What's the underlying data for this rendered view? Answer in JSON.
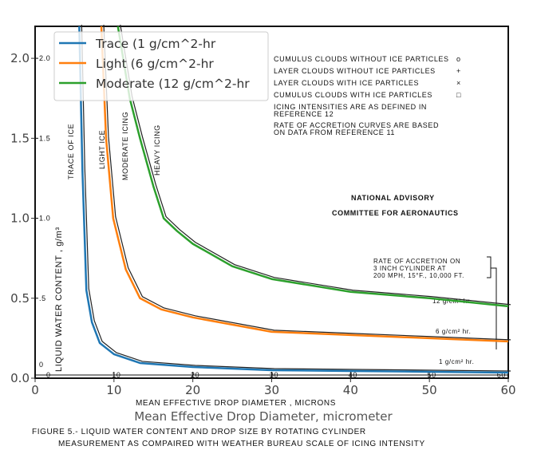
{
  "chart_data": {
    "type": "line",
    "title": "",
    "xlabel": "Mean Effective Drop Diameter, micrometer",
    "ylabel": "",
    "xlim": [
      0,
      60
    ],
    "ylim": [
      0,
      2.2
    ],
    "xticks": [
      "0",
      "10",
      "20",
      "30",
      "40",
      "50",
      "60"
    ],
    "yticks": [
      "0.0",
      "0.5",
      "1.0",
      "1.5",
      "2.0"
    ],
    "grid": false,
    "legend_position": "top-left",
    "series": [
      {
        "name": "Trace (1 g/cm^2-hr",
        "color": "#1f77b4",
        "x": [
          5.6,
          6.0,
          6.5,
          7.2,
          8.2,
          10,
          13.3,
          20,
          30,
          40,
          50,
          60
        ],
        "y": [
          2.2,
          1.3,
          0.55,
          0.35,
          0.22,
          0.15,
          0.095,
          0.07,
          0.05,
          0.045,
          0.04,
          0.035
        ]
      },
      {
        "name": "Light (6 g/cm^2-hr",
        "color": "#ff7f0e",
        "x": [
          8.4,
          9.0,
          9.9,
          11.5,
          13.3,
          16,
          20,
          30,
          40,
          50,
          60
        ],
        "y": [
          2.2,
          1.5,
          1.0,
          0.68,
          0.5,
          0.43,
          0.38,
          0.29,
          0.27,
          0.25,
          0.23
        ]
      },
      {
        "name": "Moderate (12 g/cm^2-hr",
        "color": "#2ca02c",
        "x": [
          10.5,
          12,
          13.3,
          15,
          16.3,
          18,
          20,
          25,
          30,
          40,
          50,
          60
        ],
        "y": [
          2.2,
          1.75,
          1.5,
          1.2,
          1.0,
          0.92,
          0.84,
          0.7,
          0.62,
          0.54,
          0.5,
          0.45
        ]
      }
    ]
  },
  "scan": {
    "ylabel": "LIQUID WATER CONTENT , g/m³",
    "yticks": [
      "0",
      ".5",
      "1.0",
      "1.5",
      "2.0"
    ],
    "xticks": [
      "0",
      "10",
      "20",
      "30",
      "40",
      "50",
      "60"
    ],
    "xlabel": "MEAN EFFECTIVE DROP DIAMETER , MICRONS",
    "caption_line1": "FIGURE 5.- LIQUID WATER CONTENT AND DROP SIZE BY ROTATING CYLINDER",
    "caption_line2": "MEASUREMENT AS COMPAIRED WITH WEATHER BUREAU SCALE OF ICING INTENSITY",
    "legend": [
      {
        "label": "CUMULUS CLOUDS WITHOUT ICE PARTICLES",
        "symbol": "o"
      },
      {
        "label": "LAYER CLOUDS WITHOUT ICE PARTICLES",
        "symbol": "+"
      },
      {
        "label": "LAYER CLOUDS WITH ICE PARTICLES",
        "symbol": "×"
      },
      {
        "label": "CUMULUS CLOUDS WITH ICE PARTICLES",
        "symbol": "□"
      }
    ],
    "note1_line1": "ICING INTENSITIES ARE AS DEFINED IN",
    "note1_line2": "REFERENCE 12",
    "note2_line1": "RATE OF ACCRETION CURVES ARE BASED",
    "note2_line2": "ON DATA FROM REFERENCE 11",
    "agency_line1": "NATIONAL ADVISORY",
    "agency_line2": "COMMITTEE FOR AERONAUTICS",
    "accretion_line1": "RATE OF ACCRETION ON",
    "accretion_line2": "3 INCH CYLINDER AT",
    "accretion_line3": "200 MPH, 15°F., 10,000 FT.",
    "curve_labels": [
      "12 g/cm² hr.",
      "6 g/cm² hr.",
      "1 g/cm² hr."
    ],
    "regions": [
      "TRACE OF ICE",
      "LIGHT ICE",
      "MODERATE ICING",
      "HEAVY ICING"
    ]
  }
}
